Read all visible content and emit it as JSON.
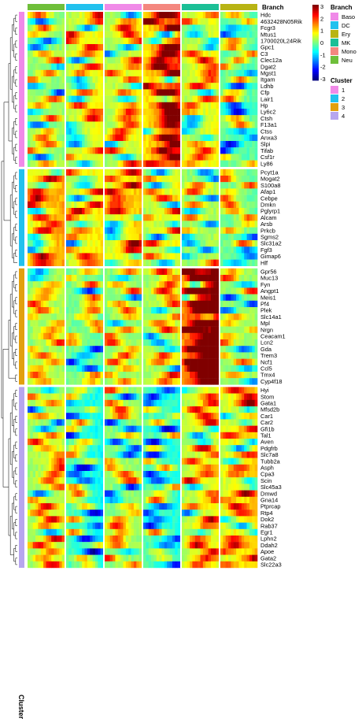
{
  "chart_data": {
    "type": "heatmap",
    "annotation_title": "Branch",
    "branches": [
      {
        "name": "Baso",
        "color": "#f08ae8"
      },
      {
        "name": "DC",
        "color": "#22c1ee"
      },
      {
        "name": "Ery",
        "color": "#b8b414"
      },
      {
        "name": "MK",
        "color": "#1bbf96"
      },
      {
        "name": "Mono",
        "color": "#f4877f"
      },
      {
        "name": "Neu",
        "color": "#6fbf3a"
      }
    ],
    "column_order": [
      "Neu",
      "DC",
      "Baso",
      "Mono",
      "MK",
      "Ery"
    ],
    "colorbar": {
      "ticks": [
        "3",
        "2",
        "1",
        "0",
        "-1",
        "-2",
        "-3"
      ],
      "range": [
        -3,
        3
      ]
    },
    "cluster_title": "Cluster",
    "clusters": [
      {
        "name": "1",
        "color": "#f08ae8"
      },
      {
        "name": "2",
        "color": "#22c1ee"
      },
      {
        "name": "3",
        "color": "#e2a00e"
      },
      {
        "name": "4",
        "color": "#b7a6ee"
      }
    ],
    "row_annotation_label": "Cluster",
    "row_groups": [
      {
        "cluster": "1",
        "genes": [
          "Hdc",
          "4632428N05Rik",
          "Fcgr3",
          "Mtus1",
          "1700020L24Rik",
          "Gpc1",
          "C3",
          "Clec12a",
          "Dgat2",
          "Mgst1",
          "Itgam",
          "Ldhb",
          "Cfp",
          "Lair1",
          "Hp",
          "Ly6c2",
          "Ctsh",
          "F13a1",
          "Ctss",
          "Anxa3",
          "Slpi",
          "Tifab",
          "Csf1r",
          "Ly86"
        ]
      },
      {
        "cluster": "2",
        "genes": [
          "Pcyt1a",
          "Mogat2",
          "S100a8",
          "Afap1",
          "Cebpe",
          "Dmkn",
          "Pglyrp1",
          "Alcam",
          "Arsb",
          "Prkcb",
          "Sgms2",
          "Slc31a2",
          "Fgf3",
          "Gimap6",
          "Hlf"
        ]
      },
      {
        "cluster": "3",
        "genes": [
          "Gpr56",
          "Muc13",
          "Fyn",
          "Angpt1",
          "Meis1",
          "Pf4",
          "Plek",
          "Slc14a1",
          "Mpl",
          "Nrgn",
          "Ceacam1",
          "Lcn2",
          "Gda",
          "Trem3",
          "Ncf1",
          "Ccl5",
          "Tmx4",
          "Cyp4f18"
        ]
      },
      {
        "cluster": "4",
        "genes": [
          "Hyi",
          "Stom",
          "Gata1",
          "Mfsd2b",
          "Car1",
          "Car2",
          "Gfi1b",
          "Tal1",
          "Aven",
          "Pdgfrb",
          "Slc7a8",
          "Tubb2a",
          "Asph",
          "Cpa3",
          "Scin",
          "Slc45a3",
          "Dmwd",
          "Gna14",
          "Ptprcap",
          "Rtp4",
          "Dok2",
          "Rab37",
          "Egr1",
          "Lphn2",
          "Ddah2",
          "Apoe",
          "Gata2",
          "Slc22a3"
        ]
      }
    ],
    "group_peaks": [
      {
        "cluster": "1",
        "columns": {
          "Neu": 0.1,
          "DC": 0.5,
          "Baso": 0.4,
          "Mono": 1.4,
          "MK": 0.5,
          "Ery": -0.2
        }
      },
      {
        "cluster": "2",
        "columns": {
          "Neu": 0.9,
          "DC": 0.6,
          "Baso": 0.8,
          "Mono": 0.5,
          "MK": 0.2,
          "Ery": -0.1
        }
      },
      {
        "cluster": "3",
        "columns": {
          "Neu": 0.2,
          "DC": -0.1,
          "Baso": 0.1,
          "Mono": 0.3,
          "MK": 2.3,
          "Ery": 0.1
        }
      },
      {
        "cluster": "4",
        "columns": {
          "Neu": 0.3,
          "DC": -0.5,
          "Baso": 0.1,
          "Mono": -0.4,
          "MK": 0.5,
          "Ery": 0.8
        }
      }
    ]
  }
}
